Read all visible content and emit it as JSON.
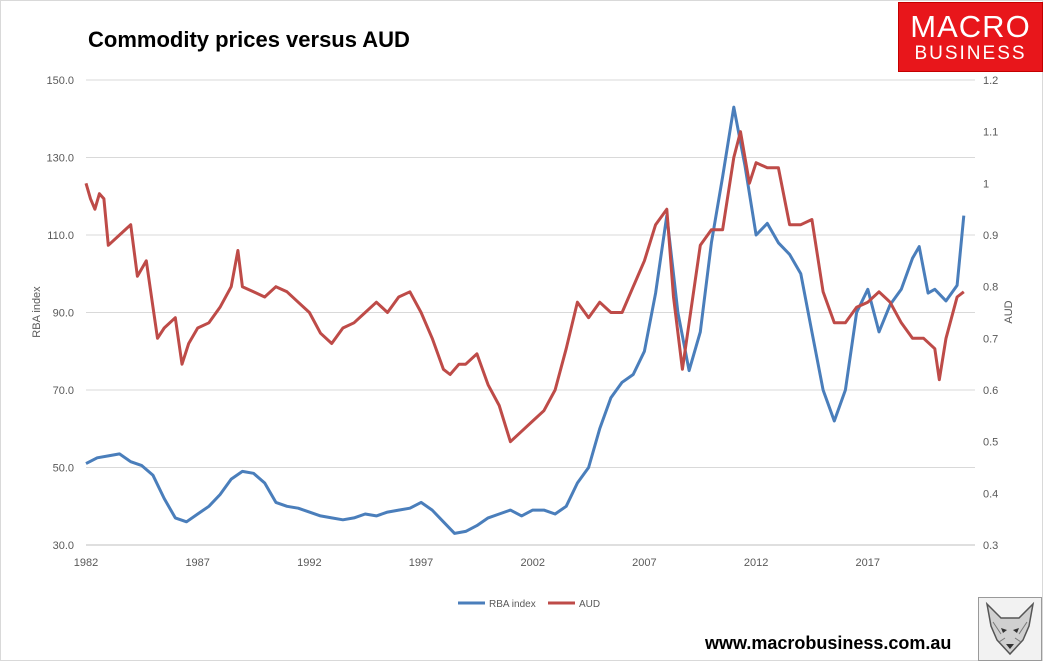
{
  "header": {
    "logo_line1": "MACRO",
    "logo_line2": "BUSINESS",
    "website": "www.macrobusiness.com.au"
  },
  "colors": {
    "rba": "#4a7ebb",
    "aud": "#be4b48",
    "grid": "#d9d9d9",
    "logo_bg": "#e8161b"
  },
  "chart_data": {
    "type": "line",
    "title": "Commodity prices versus AUD",
    "xlabel": "",
    "ylabel": "RBA index",
    "y2label": "AUD",
    "xlim": [
      1982,
      2021.8
    ],
    "ylim": [
      30,
      150
    ],
    "y2lim": [
      0.3,
      1.2
    ],
    "xticks": [
      1982,
      1987,
      1992,
      1997,
      2002,
      2007,
      2012,
      2017
    ],
    "xtick_labels": [
      "1982",
      "1987",
      "1992",
      "1997",
      "2002",
      "2007",
      "2012",
      "2017"
    ],
    "yticks": [
      30,
      50,
      70,
      90,
      110,
      130,
      150
    ],
    "ytick_labels": [
      "30.0",
      "50.0",
      "70.0",
      "90.0",
      "110.0",
      "130.0",
      "150.0"
    ],
    "y2ticks": [
      0.3,
      0.4,
      0.5,
      0.6,
      0.7,
      0.8,
      0.9,
      1.0,
      1.1,
      1.2
    ],
    "y2tick_labels": [
      "0.3",
      "0.4",
      "0.5",
      "0.6",
      "0.7",
      "0.8",
      "0.9",
      "1",
      "1.1",
      "1.2"
    ],
    "grid": true,
    "legend_position": "bottom-center",
    "series": [
      {
        "name": "RBA index",
        "axis": "left",
        "x": [
          1982.0,
          1982.5,
          1983.0,
          1983.5,
          1984.0,
          1984.5,
          1985.0,
          1985.5,
          1986.0,
          1986.5,
          1987.0,
          1987.5,
          1988.0,
          1988.5,
          1989.0,
          1989.5,
          1990.0,
          1990.5,
          1991.0,
          1991.5,
          1992.0,
          1992.5,
          1993.0,
          1993.5,
          1994.0,
          1994.5,
          1995.0,
          1995.5,
          1996.0,
          1996.5,
          1997.0,
          1997.5,
          1998.0,
          1998.5,
          1999.0,
          1999.5,
          2000.0,
          2000.5,
          2001.0,
          2001.5,
          2002.0,
          2002.5,
          2003.0,
          2003.5,
          2004.0,
          2004.5,
          2005.0,
          2005.5,
          2006.0,
          2006.5,
          2007.0,
          2007.5,
          2008.0,
          2008.5,
          2009.0,
          2009.5,
          2010.0,
          2010.5,
          2011.0,
          2011.5,
          2012.0,
          2012.5,
          2013.0,
          2013.5,
          2014.0,
          2014.5,
          2015.0,
          2015.5,
          2016.0,
          2016.5,
          2017.0,
          2017.5,
          2018.0,
          2018.5,
          2019.0,
          2019.3,
          2019.7,
          2020.0,
          2020.5,
          2021.0,
          2021.3
        ],
        "values": [
          51,
          52.5,
          53,
          53.5,
          51.5,
          50.5,
          48,
          42,
          37,
          36,
          38,
          40,
          43,
          47,
          49,
          48.5,
          46,
          41,
          40,
          39.5,
          38.5,
          37.5,
          37,
          36.5,
          37,
          38,
          37.5,
          38.5,
          39,
          39.5,
          41,
          39,
          36,
          33,
          33.5,
          35,
          37,
          38,
          39,
          37.5,
          39,
          39,
          38,
          40,
          46,
          50,
          60,
          68,
          72,
          74,
          80,
          95,
          115,
          90,
          75,
          85,
          108,
          125,
          143,
          128,
          110,
          113,
          108,
          105,
          100,
          85,
          70,
          62,
          70,
          90,
          96,
          85,
          92,
          96,
          104,
          107,
          95,
          96,
          93,
          97,
          115
        ]
      },
      {
        "name": "AUD",
        "axis": "right",
        "x": [
          1982.0,
          1982.2,
          1982.4,
          1982.6,
          1982.8,
          1983.0,
          1983.5,
          1984.0,
          1984.3,
          1984.7,
          1985.0,
          1985.2,
          1985.5,
          1986.0,
          1986.3,
          1986.6,
          1987.0,
          1987.5,
          1988.0,
          1988.5,
          1988.8,
          1989.0,
          1989.5,
          1990.0,
          1990.5,
          1991.0,
          1991.5,
          1992.0,
          1992.5,
          1993.0,
          1993.5,
          1994.0,
          1994.5,
          1995.0,
          1995.5,
          1996.0,
          1996.5,
          1997.0,
          1997.5,
          1998.0,
          1998.3,
          1998.7,
          1999.0,
          1999.5,
          2000.0,
          2000.5,
          2001.0,
          2001.5,
          2002.0,
          2002.5,
          2003.0,
          2003.5,
          2004.0,
          2004.5,
          2005.0,
          2005.5,
          2006.0,
          2006.5,
          2007.0,
          2007.5,
          2008.0,
          2008.3,
          2008.7,
          2009.0,
          2009.5,
          2010.0,
          2010.5,
          2011.0,
          2011.3,
          2011.7,
          2012.0,
          2012.5,
          2013.0,
          2013.5,
          2014.0,
          2014.5,
          2015.0,
          2015.5,
          2016.0,
          2016.5,
          2017.0,
          2017.5,
          2018.0,
          2018.5,
          2019.0,
          2019.5,
          2020.0,
          2020.2,
          2020.5,
          2021.0,
          2021.3
        ],
        "values": [
          1.0,
          0.97,
          0.95,
          0.98,
          0.97,
          0.88,
          0.9,
          0.92,
          0.82,
          0.85,
          0.76,
          0.7,
          0.72,
          0.74,
          0.65,
          0.69,
          0.72,
          0.73,
          0.76,
          0.8,
          0.87,
          0.8,
          0.79,
          0.78,
          0.8,
          0.79,
          0.77,
          0.75,
          0.71,
          0.69,
          0.72,
          0.73,
          0.75,
          0.77,
          0.75,
          0.78,
          0.79,
          0.75,
          0.7,
          0.64,
          0.63,
          0.65,
          0.65,
          0.67,
          0.61,
          0.57,
          0.5,
          0.52,
          0.54,
          0.56,
          0.6,
          0.68,
          0.77,
          0.74,
          0.77,
          0.75,
          0.75,
          0.8,
          0.85,
          0.92,
          0.95,
          0.78,
          0.64,
          0.73,
          0.88,
          0.91,
          0.91,
          1.05,
          1.1,
          1.0,
          1.04,
          1.03,
          1.03,
          0.92,
          0.92,
          0.93,
          0.79,
          0.73,
          0.73,
          0.76,
          0.77,
          0.79,
          0.77,
          0.73,
          0.7,
          0.7,
          0.68,
          0.62,
          0.7,
          0.78,
          0.79
        ]
      }
    ]
  }
}
